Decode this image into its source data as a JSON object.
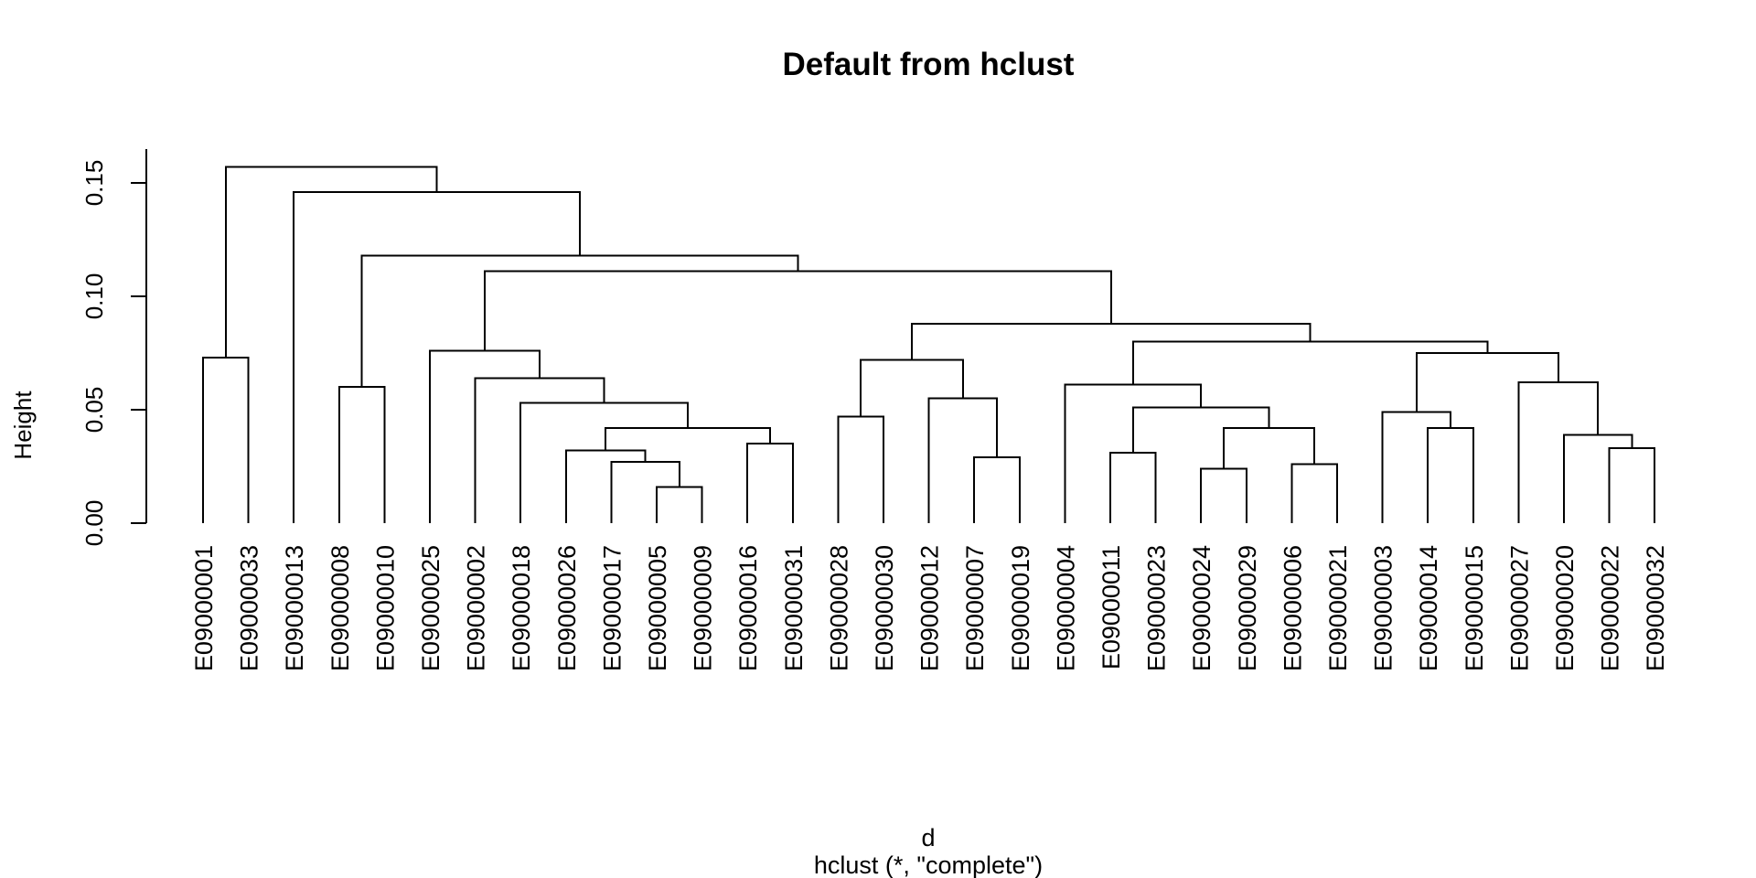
{
  "chart_data": {
    "type": "dendrogram",
    "title": "Default from hclust",
    "ylabel": "Height",
    "xlabel": "d",
    "sub": "hclust (*, \"complete\")",
    "ylim": [
      0,
      0.165
    ],
    "yticks": [
      0.0,
      0.05,
      0.1,
      0.15
    ],
    "ytick_labels": [
      "0.00",
      "0.05",
      "0.10",
      "0.15"
    ],
    "leaves": [
      "E09000001",
      "E09000033",
      "E09000013",
      "E09000008",
      "E09000010",
      "E09000025",
      "E09000002",
      "E09000018",
      "E09000026",
      "E09000017",
      "E09000005",
      "E09000009",
      "E09000016",
      "E09000031",
      "E09000028",
      "E09000030",
      "E09000012",
      "E09000007",
      "E09000019",
      "E09000004",
      "E09000011",
      "E09000023",
      "E09000024",
      "E09000029",
      "E09000006",
      "E09000021",
      "E09000003",
      "E09000014",
      "E09000015",
      "E09000027",
      "E09000020",
      "E09000022",
      "E09000032"
    ],
    "merges": [
      {
        "id": "m1",
        "left": "E09000005",
        "right": "E09000009",
        "height": 0.016
      },
      {
        "id": "m2",
        "left": "E09000024",
        "right": "E09000029",
        "height": 0.024
      },
      {
        "id": "m3",
        "left": "E09000006",
        "right": "E09000021",
        "height": 0.026
      },
      {
        "id": "m4",
        "left": "E09000017",
        "right": "m1",
        "height": 0.027
      },
      {
        "id": "m5",
        "left": "E09000007",
        "right": "E09000019",
        "height": 0.029
      },
      {
        "id": "m6",
        "left": "E09000011",
        "right": "E09000023",
        "height": 0.031
      },
      {
        "id": "m7",
        "left": "E09000026",
        "right": "m4",
        "height": 0.032
      },
      {
        "id": "m8",
        "left": "E09000022",
        "right": "E09000032",
        "height": 0.033
      },
      {
        "id": "m9",
        "left": "E09000016",
        "right": "E09000031",
        "height": 0.035
      },
      {
        "id": "m10",
        "left": "E09000020",
        "right": "m8",
        "height": 0.039
      },
      {
        "id": "m11",
        "left": "m7",
        "right": "m9",
        "height": 0.042
      },
      {
        "id": "m12",
        "left": "m2",
        "right": "m3",
        "height": 0.042
      },
      {
        "id": "m13",
        "left": "E09000014",
        "right": "E09000015",
        "height": 0.042
      },
      {
        "id": "m14",
        "left": "E09000028",
        "right": "E09000030",
        "height": 0.047
      },
      {
        "id": "m15",
        "left": "E09000003",
        "right": "m13",
        "height": 0.049
      },
      {
        "id": "m16",
        "left": "m6",
        "right": "m12",
        "height": 0.051
      },
      {
        "id": "m17",
        "left": "E09000018",
        "right": "m11",
        "height": 0.053
      },
      {
        "id": "m18",
        "left": "E09000012",
        "right": "m5",
        "height": 0.055
      },
      {
        "id": "m19",
        "left": "E09000008",
        "right": "E09000010",
        "height": 0.06
      },
      {
        "id": "m20",
        "left": "E09000004",
        "right": "m16",
        "height": 0.061
      },
      {
        "id": "m21",
        "left": "E09000027",
        "right": "m10",
        "height": 0.062
      },
      {
        "id": "m22",
        "left": "E09000002",
        "right": "m17",
        "height": 0.064
      },
      {
        "id": "m23",
        "left": "m14",
        "right": "m18",
        "height": 0.072
      },
      {
        "id": "m24",
        "left": "E09000001",
        "right": "E09000033",
        "height": 0.073
      },
      {
        "id": "m25",
        "left": "m15",
        "right": "m21",
        "height": 0.075
      },
      {
        "id": "m26",
        "left": "E09000025",
        "right": "m22",
        "height": 0.076
      },
      {
        "id": "m27",
        "left": "m20",
        "right": "m25",
        "height": 0.08
      },
      {
        "id": "m28",
        "left": "m23",
        "right": "m27",
        "height": 0.088
      },
      {
        "id": "m29",
        "left": "m26",
        "right": "m28",
        "height": 0.111
      },
      {
        "id": "m30",
        "left": "m19",
        "right": "m29",
        "height": 0.118
      },
      {
        "id": "m31",
        "left": "E09000013",
        "right": "m30",
        "height": 0.146
      },
      {
        "id": "m32",
        "left": "m24",
        "right": "m31",
        "height": 0.157
      }
    ]
  }
}
